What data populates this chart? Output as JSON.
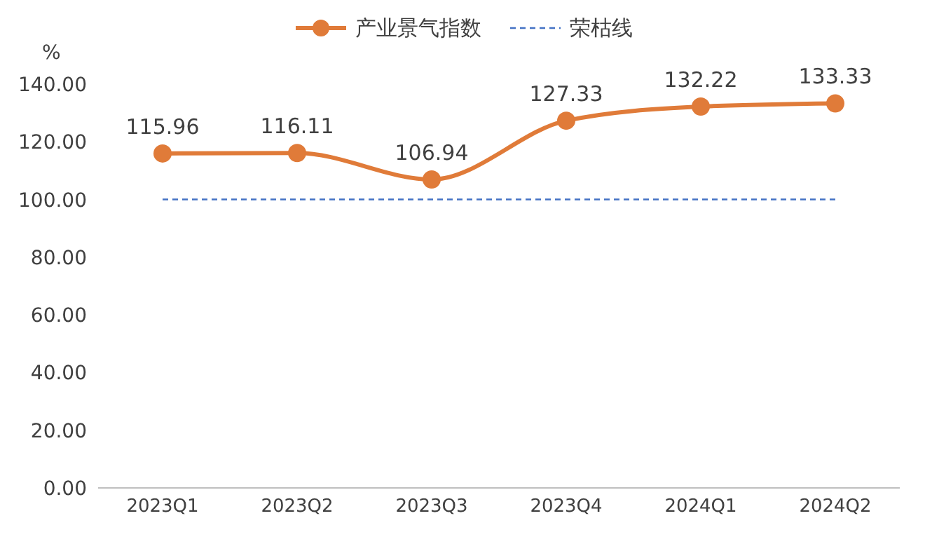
{
  "chart_data": {
    "type": "line",
    "ylabel": "%",
    "categories": [
      "2023Q1",
      "2023Q2",
      "2023Q3",
      "2023Q4",
      "2024Q1",
      "2024Q2"
    ],
    "series": [
      {
        "name": "产业景气指数",
        "color": "#e07b39",
        "values": [
          115.96,
          116.11,
          106.94,
          127.33,
          132.22,
          133.33
        ]
      }
    ],
    "ylim": [
      0,
      140
    ],
    "yticks": [
      {
        "value": 0,
        "label": "0.00"
      },
      {
        "value": 20,
        "label": "20.00"
      },
      {
        "value": 40,
        "label": "40.00"
      },
      {
        "value": 60,
        "label": "60.00"
      },
      {
        "value": 80,
        "label": "80.00"
      },
      {
        "value": 100,
        "label": "100.00"
      },
      {
        "value": 120,
        "label": "120.00"
      },
      {
        "value": 140,
        "label": "140.00"
      }
    ],
    "ref_lines": [
      {
        "axis": "y",
        "value": 100,
        "label": "荣枯线",
        "color": "#4472c4",
        "line_style": "dashed"
      }
    ],
    "marker": "circle",
    "data_labels": true,
    "legend": "top",
    "grid": false
  }
}
